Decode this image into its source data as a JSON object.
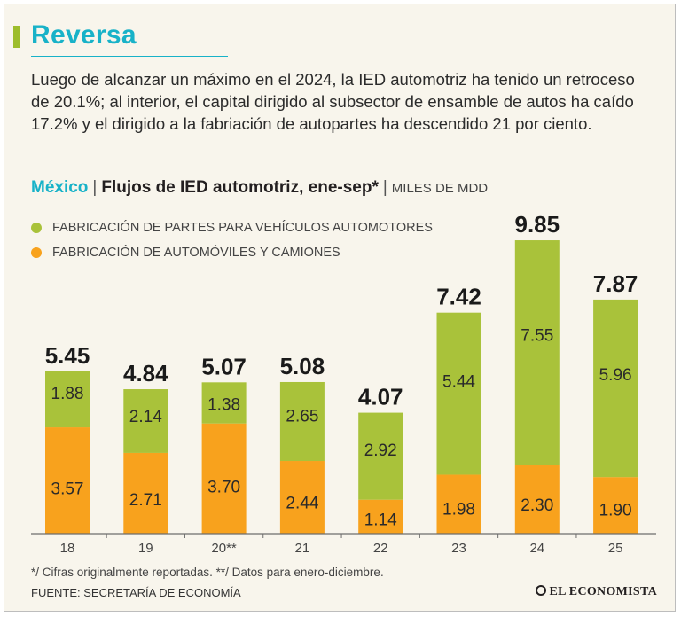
{
  "header": {
    "title": "Reversa",
    "description": "Luego de alcanzar un máximo en el 2024, la IED automotriz ha tenido un retroceso de 20.1%; al interior, el capital dirigido al subsector de ensamble de autos ha caído 17.2% y el dirigido a la fabriación de autopartes ha descendido 21 por ciento."
  },
  "chart_header": {
    "region": "México",
    "separator": "|",
    "title": "Flujos de IED automotriz, ene-sep*",
    "unit": "MILES DE MDD"
  },
  "colors": {
    "green": "#a9c23a",
    "orange": "#f8a21d",
    "teal": "#18b2c8"
  },
  "chart_data": {
    "type": "bar",
    "stacked": true,
    "title": "Flujos de IED automotriz, ene-sep*",
    "unit": "MILES DE MDD",
    "categories": [
      "18",
      "19",
      "20**",
      "21",
      "22",
      "23",
      "24",
      "25"
    ],
    "series": [
      {
        "name": "FABRICACIÓN DE AUTOMÓVILES Y CAMIONES",
        "color": "#f8a21d",
        "values": [
          3.57,
          2.71,
          3.7,
          2.44,
          1.14,
          1.98,
          2.3,
          1.9
        ],
        "labels": [
          "3.57",
          "2.71",
          "3.70",
          "2.44",
          "1.14",
          "1.98",
          "2.30",
          "1.90"
        ]
      },
      {
        "name": "FABRICACIÓN DE PARTES PARA VEHÍCULOS AUTOMOTORES",
        "color": "#a9c23a",
        "values": [
          1.88,
          2.14,
          1.38,
          2.65,
          2.92,
          5.44,
          7.55,
          5.96
        ],
        "labels": [
          "1.88",
          "2.14",
          "1.38",
          "2.65",
          "2.92",
          "5.44",
          "7.55",
          "5.96"
        ]
      }
    ],
    "totals": [
      5.45,
      4.84,
      5.07,
      5.08,
      4.07,
      7.42,
      9.85,
      7.87
    ],
    "total_labels": [
      "5.45",
      "4.84",
      "5.07",
      "5.08",
      "4.07",
      "7.42",
      "9.85",
      "7.87"
    ],
    "legend": [
      "FABRICACIÓN DE PARTES PARA VEHÍCULOS AUTOMOTORES",
      "FABRICACIÓN DE AUTOMÓVILES Y CAMIONES"
    ],
    "legend_position": "top-left",
    "ylim": [
      0,
      10
    ],
    "grid": false
  },
  "footer": {
    "footnote": "*/ Cifras originalmente reportadas. **/ Datos para enero-diciembre.",
    "source": "FUENTE: SECRETARÍA DE ECONOMÍA",
    "brand": "EL ECONOMISTA"
  }
}
